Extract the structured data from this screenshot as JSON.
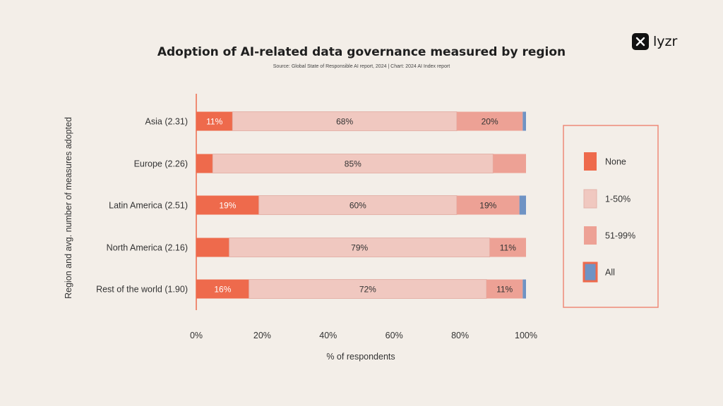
{
  "brand": {
    "name": "lyzr",
    "logo_icon": "lyzr-logo-icon"
  },
  "chart_data": {
    "type": "bar",
    "orientation": "horizontal",
    "stacked": true,
    "title": "Adoption of AI-related data governance measured by region",
    "subtitle": "Source: Global State of Responsible AI report, 2024 | Chart: 2024 AI Index report",
    "xlabel": "% of respondents",
    "ylabel": "Region and avg. number of measures adopted",
    "xlim": [
      0,
      100
    ],
    "xticks": [
      "0%",
      "20%",
      "40%",
      "60%",
      "80%",
      "100%"
    ],
    "categories": [
      "Asia (2.31)",
      "Europe (2.26)",
      "Latin America (2.51)",
      "North America (2.16)",
      "Rest of the world (1.90)"
    ],
    "series": [
      {
        "name": "None",
        "color": "#ee6a4c",
        "values": [
          11,
          5,
          19,
          10,
          16
        ],
        "labels": [
          "11%",
          "",
          "19%",
          "",
          "16%"
        ]
      },
      {
        "name": "1-50%",
        "color": "#f0c8c0",
        "values": [
          68,
          85,
          60,
          79,
          72
        ],
        "labels": [
          "68%",
          "85%",
          "60%",
          "79%",
          "72%"
        ]
      },
      {
        "name": "51-99%",
        "color": "#eda195",
        "values": [
          20,
          10,
          19,
          11,
          11
        ],
        "labels": [
          "20%",
          "",
          "19%",
          "11%",
          "11%"
        ]
      },
      {
        "name": "All",
        "color": "#6f93c4",
        "values": [
          1,
          0,
          2,
          0,
          1
        ],
        "labels": [
          "",
          "",
          "",
          "",
          ""
        ]
      }
    ],
    "legend_position": "right",
    "grid": false
  }
}
